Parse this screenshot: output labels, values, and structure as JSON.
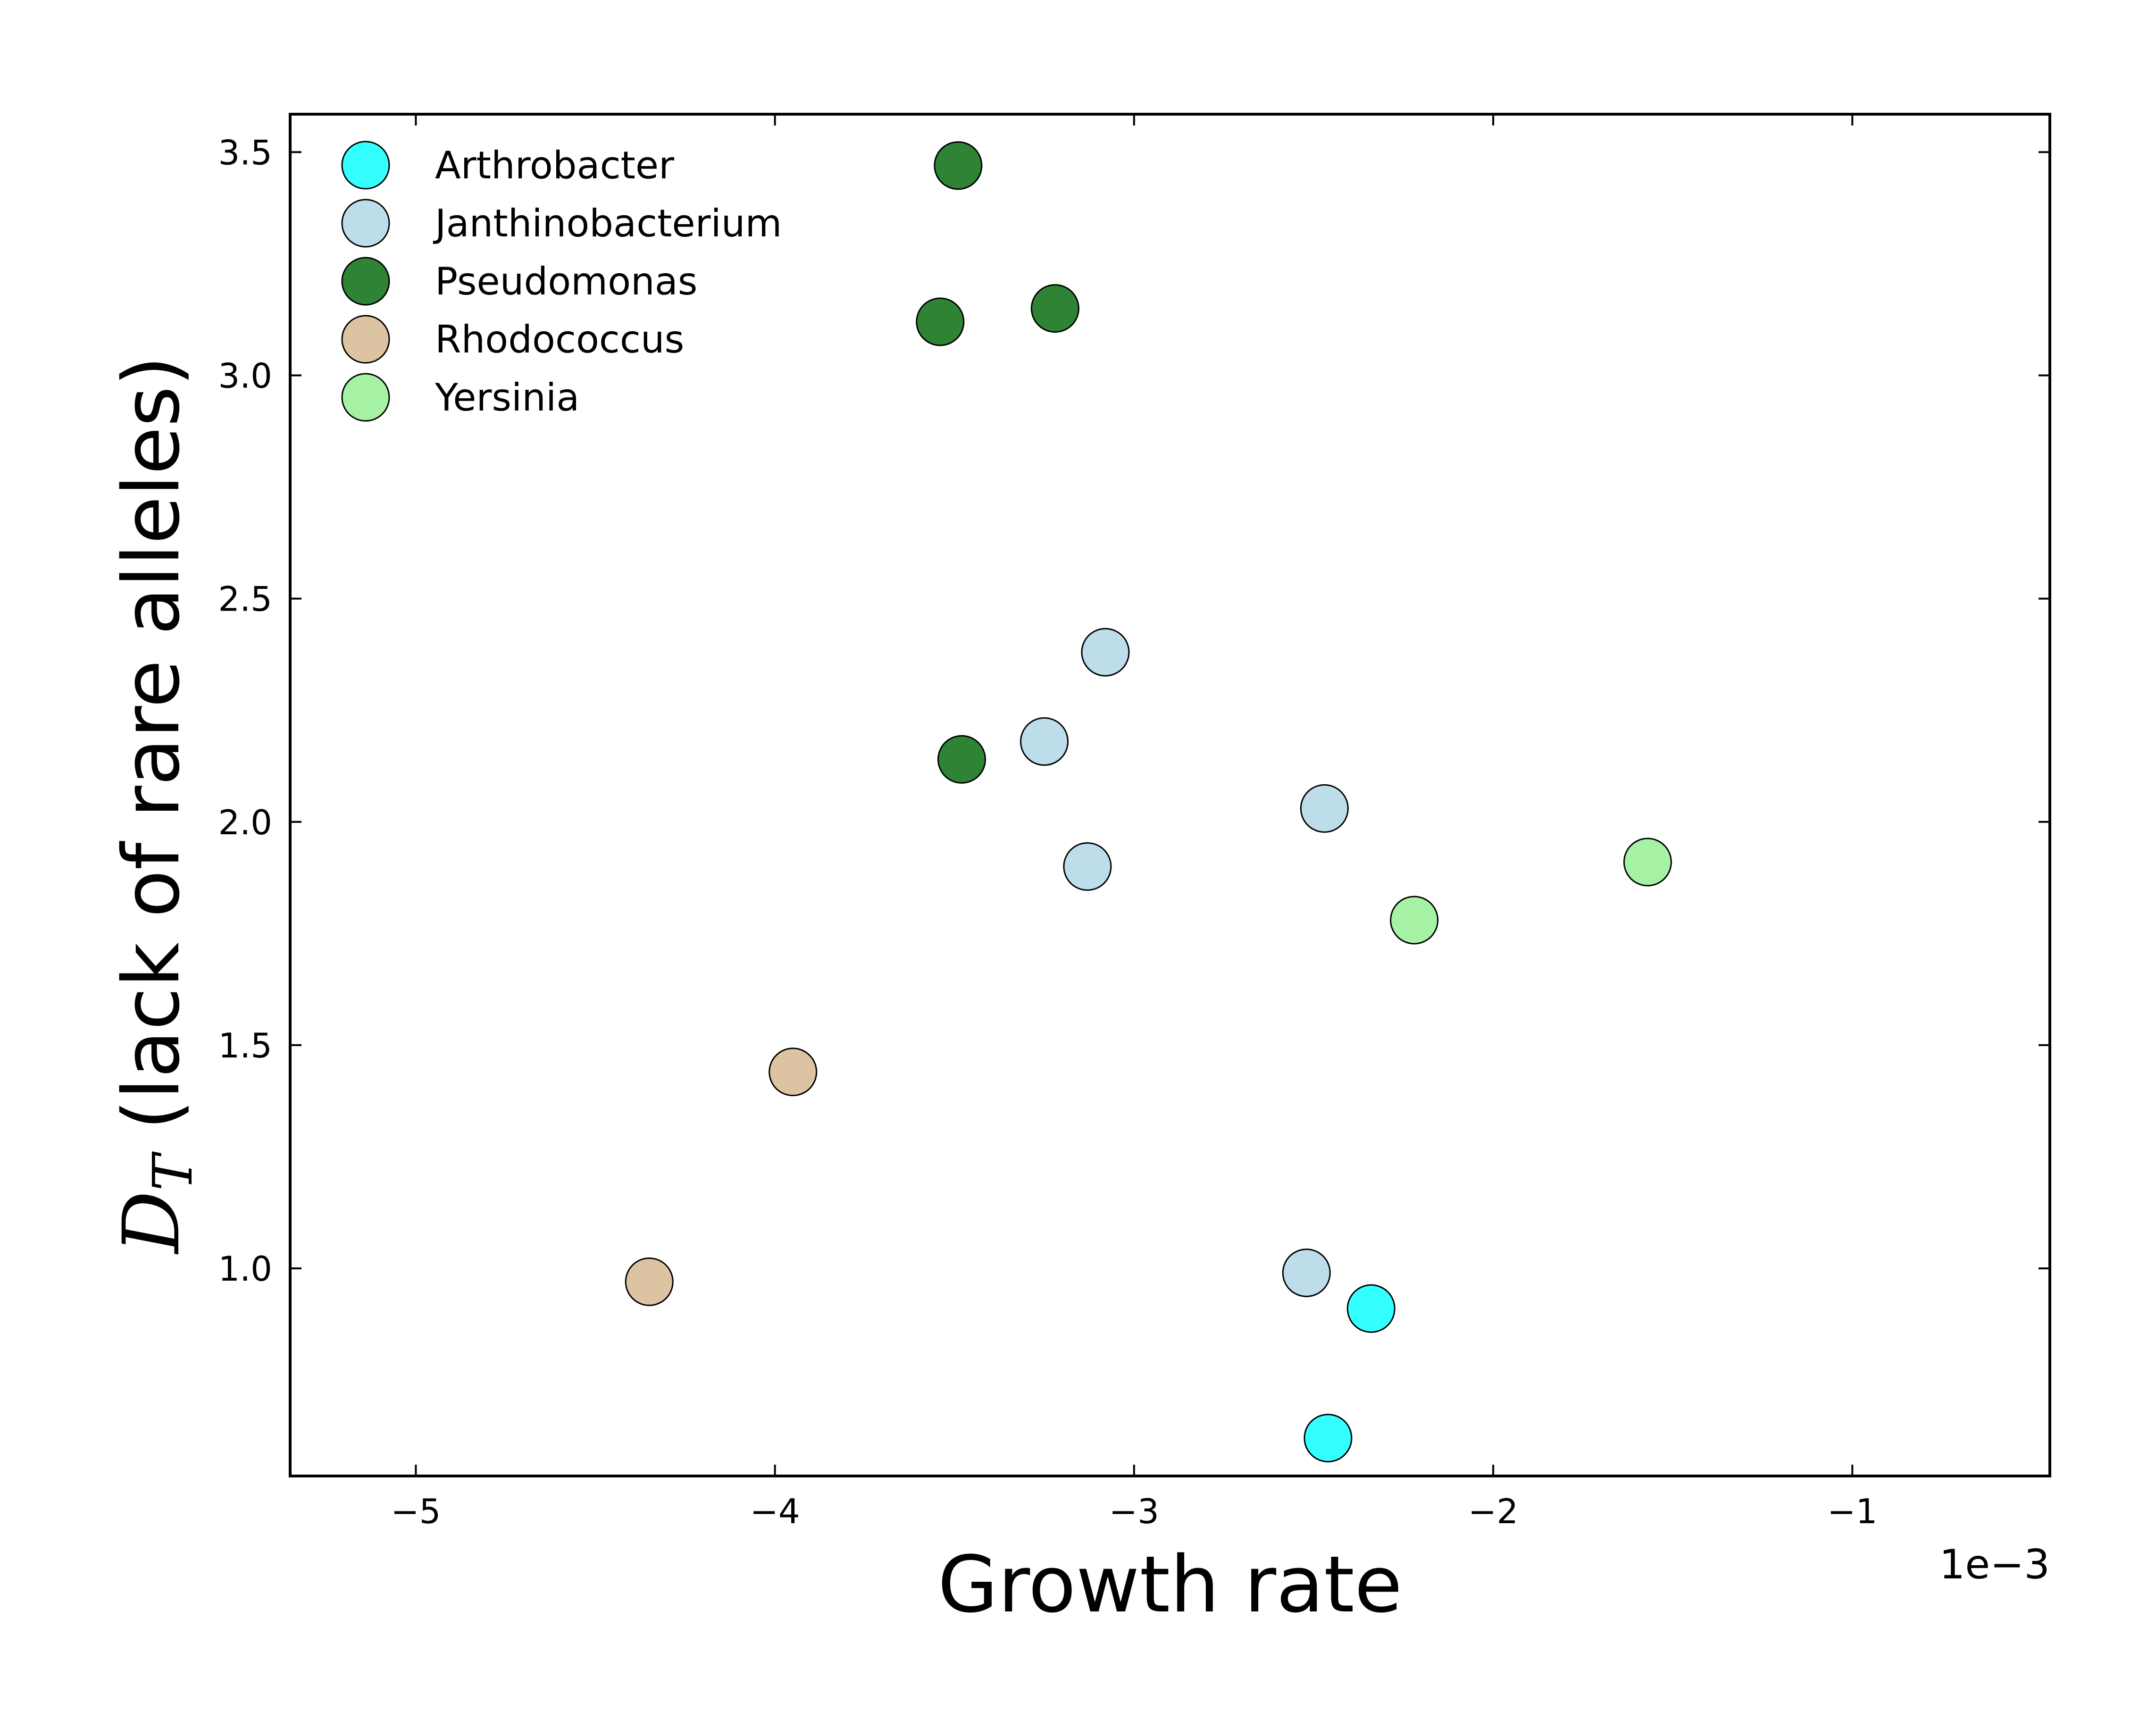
{
  "chart_data": {
    "type": "scatter",
    "xlabel": "Growth rate",
    "ylabel_symbol": "D",
    "ylabel_subscript": "T",
    "ylabel_text": " (lack of rare alleles)",
    "x_offset_label": "1e−3",
    "xlim": [
      -5.35,
      -0.45
    ],
    "ylim": [
      0.535,
      3.585
    ],
    "x_ticks": [
      -5,
      -4,
      -3,
      -2,
      -1
    ],
    "x_tick_labels": [
      "−5",
      "−4",
      "−3",
      "−2",
      "−1"
    ],
    "y_ticks": [
      1.0,
      1.5,
      2.0,
      2.5,
      3.0,
      3.5
    ],
    "y_tick_labels": [
      "1.0",
      "1.5",
      "2.0",
      "2.5",
      "3.0",
      "3.5"
    ],
    "grid": false,
    "legend_position": "top-left",
    "series": [
      {
        "name": "Arthrobacter",
        "color": "#33ffff",
        "points": [
          [
            -2.34,
            0.91
          ],
          [
            -2.46,
            0.62
          ]
        ]
      },
      {
        "name": "Janthinobacterium",
        "color": "#bcdde9",
        "points": [
          [
            -3.08,
            2.38
          ],
          [
            -3.25,
            2.18
          ],
          [
            -3.13,
            1.9
          ],
          [
            -2.47,
            2.03
          ],
          [
            -2.52,
            0.99
          ]
        ]
      },
      {
        "name": "Pseudomonas",
        "color": "#2f8334",
        "points": [
          [
            -3.49,
            3.47
          ],
          [
            -3.54,
            3.12
          ],
          [
            -3.22,
            3.15
          ],
          [
            -3.48,
            2.14
          ]
        ]
      },
      {
        "name": "Rhodococcus",
        "color": "#dcc4a2",
        "points": [
          [
            -3.95,
            1.44
          ],
          [
            -4.35,
            0.97
          ]
        ]
      },
      {
        "name": "Yersinia",
        "color": "#a5f2a5",
        "points": [
          [
            -2.22,
            1.78
          ],
          [
            -1.57,
            1.91
          ]
        ]
      }
    ]
  }
}
